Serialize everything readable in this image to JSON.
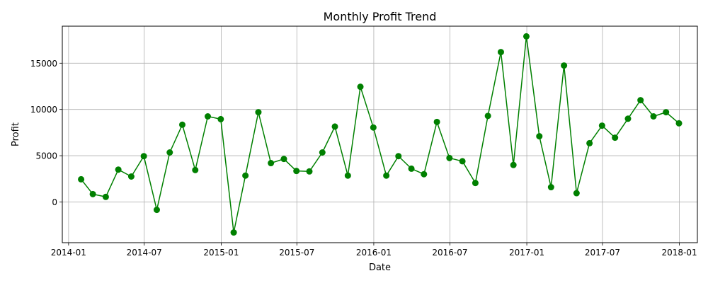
{
  "chart_data": {
    "type": "line",
    "title": "Monthly Profit Trend",
    "xlabel": "Date",
    "ylabel": "Profit",
    "grid": true,
    "legend": "none",
    "series_color": "#008000",
    "xlim": [
      "2013-12-17",
      "2018-02-13"
    ],
    "ylim": [
      -4400,
      19000
    ],
    "xticks": [
      {
        "date": "2014-01-01",
        "label": "2014-01"
      },
      {
        "date": "2014-07-01",
        "label": "2014-07"
      },
      {
        "date": "2015-01-01",
        "label": "2015-01"
      },
      {
        "date": "2015-07-01",
        "label": "2015-07"
      },
      {
        "date": "2016-01-01",
        "label": "2016-01"
      },
      {
        "date": "2016-07-01",
        "label": "2016-07"
      },
      {
        "date": "2017-01-01",
        "label": "2017-01"
      },
      {
        "date": "2017-07-01",
        "label": "2017-07"
      },
      {
        "date": "2018-01-01",
        "label": "2018-01"
      }
    ],
    "yticks": [
      {
        "value": 0,
        "label": "0"
      },
      {
        "value": 5000,
        "label": "5000"
      },
      {
        "value": 10000,
        "label": "10000"
      },
      {
        "value": 15000,
        "label": "15000"
      }
    ],
    "series": [
      {
        "x": [
          "2014-01-31",
          "2014-02-28",
          "2014-03-31",
          "2014-04-30",
          "2014-05-31",
          "2014-06-30",
          "2014-07-31",
          "2014-08-31",
          "2014-09-30",
          "2014-10-31",
          "2014-11-30",
          "2014-12-31",
          "2015-01-31",
          "2015-02-28",
          "2015-03-31",
          "2015-04-30",
          "2015-05-31",
          "2015-06-30",
          "2015-07-31",
          "2015-08-31",
          "2015-09-30",
          "2015-10-31",
          "2015-11-30",
          "2015-12-31",
          "2016-01-31",
          "2016-02-29",
          "2016-03-31",
          "2016-04-30",
          "2016-05-31",
          "2016-06-30",
          "2016-07-31",
          "2016-08-31",
          "2016-09-30",
          "2016-10-31",
          "2016-11-30",
          "2016-12-31",
          "2017-01-31",
          "2017-02-28",
          "2017-03-31",
          "2017-04-30",
          "2017-05-31",
          "2017-06-30",
          "2017-07-31",
          "2017-08-31",
          "2017-09-30",
          "2017-10-31",
          "2017-11-30",
          "2017-12-31"
        ],
        "values": [
          2450,
          850,
          550,
          3500,
          2750,
          4950,
          -850,
          5350,
          8350,
          3450,
          9250,
          8950,
          -3300,
          2850,
          9700,
          4200,
          4650,
          3350,
          3300,
          5350,
          8150,
          2850,
          12450,
          8050,
          2850,
          4950,
          3600,
          3000,
          8650,
          4750,
          4400,
          2050,
          9300,
          16200,
          4000,
          17900,
          7100,
          1600,
          14750,
          950,
          6350,
          8250,
          6950,
          9000,
          11000,
          9250,
          9700,
          8500
        ]
      }
    ]
  }
}
